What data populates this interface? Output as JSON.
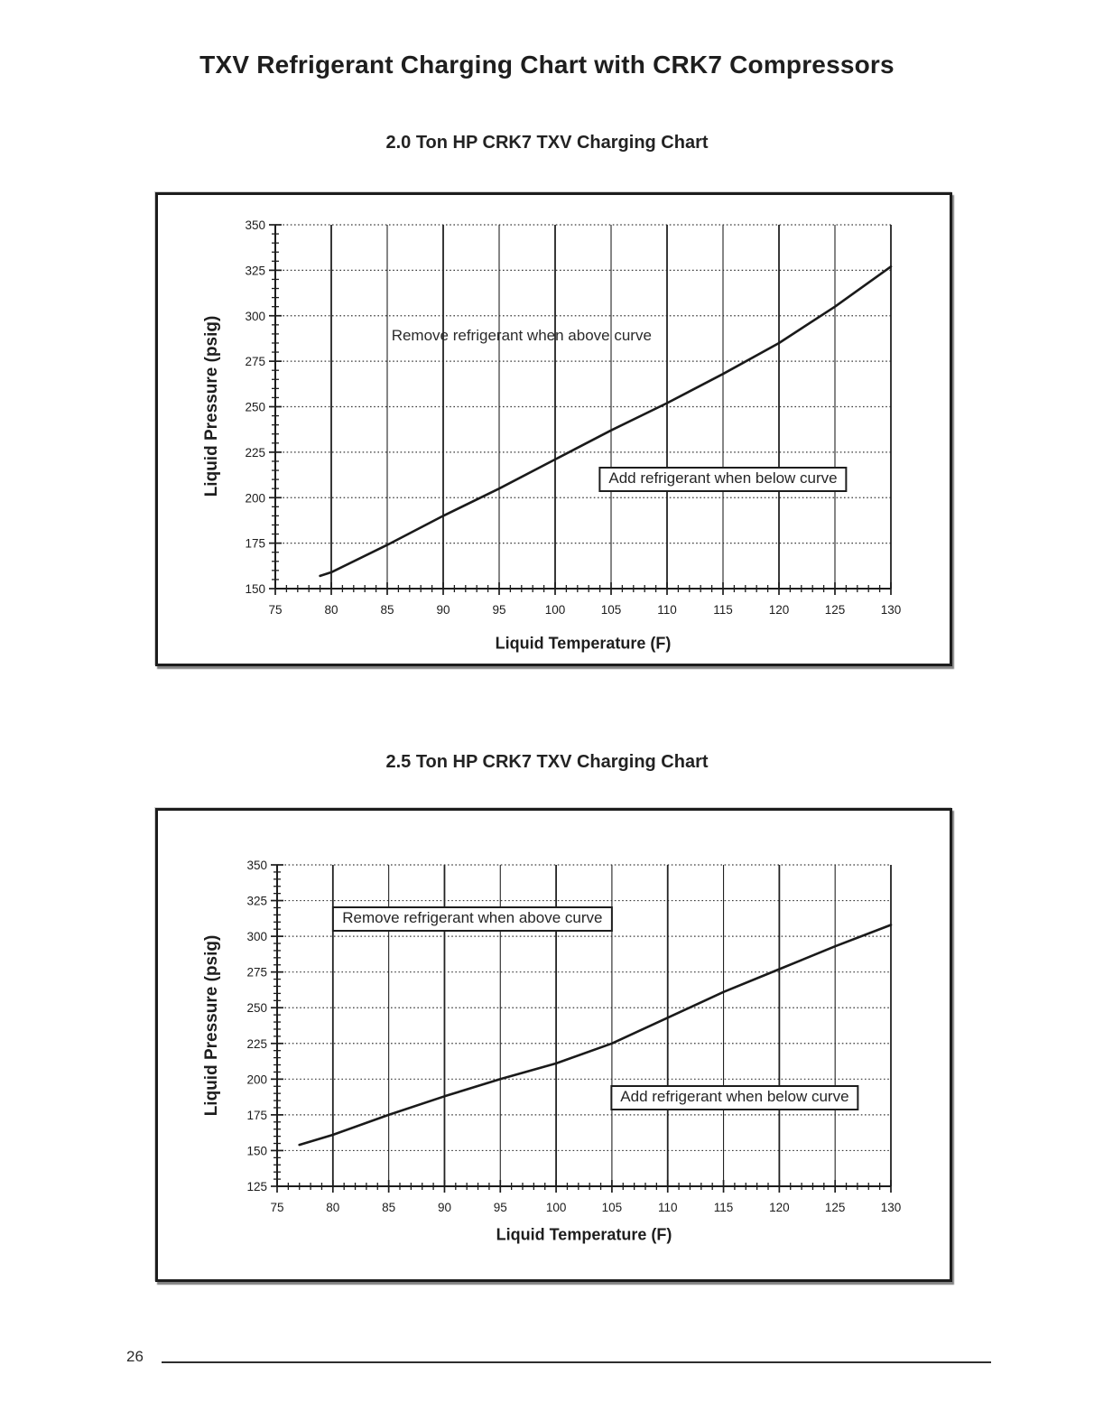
{
  "page": {
    "title": "TXV Refrigerant Charging Chart with CRK7 Compressors",
    "page_number": "26"
  },
  "chart_data": [
    {
      "type": "line",
      "title": "2.0 Ton HP CRK7 TXV Charging Chart",
      "xlabel": "Liquid Temperature (F)",
      "ylabel": "Liquid Pressure (psig)",
      "xlim": [
        75,
        130
      ],
      "ylim": [
        150,
        350
      ],
      "x_ticks": [
        75,
        80,
        85,
        90,
        95,
        100,
        105,
        110,
        115,
        120,
        125,
        130
      ],
      "y_ticks": [
        150,
        175,
        200,
        225,
        250,
        275,
        300,
        325,
        350
      ],
      "x_minor_step": 1,
      "y_minor_step": 5,
      "grid": "on",
      "legend": "none",
      "series": [
        {
          "name": "charging curve",
          "points": [
            [
              79,
              157
            ],
            [
              80,
              159
            ],
            [
              85,
              174
            ],
            [
              90,
              190
            ],
            [
              95,
              205
            ],
            [
              100,
              221
            ],
            [
              105,
              237
            ],
            [
              110,
              252
            ],
            [
              115,
              268
            ],
            [
              120,
              285
            ],
            [
              125,
              305
            ],
            [
              130,
              327
            ]
          ]
        }
      ],
      "annotations": [
        {
          "text": "Remove refrigerant when above curve",
          "x": 97,
          "y": 289,
          "boxed": false
        },
        {
          "text": "Add refrigerant when below curve",
          "x": 115,
          "y": 210,
          "boxed": true
        }
      ]
    },
    {
      "type": "line",
      "title": "2.5 Ton HP CRK7 TXV Charging Chart",
      "xlabel": "Liquid Temperature (F)",
      "ylabel": "Liquid Pressure (psig)",
      "xlim": [
        75,
        130
      ],
      "ylim": [
        125,
        350
      ],
      "x_ticks": [
        75,
        80,
        85,
        90,
        95,
        100,
        105,
        110,
        115,
        120,
        125,
        130
      ],
      "y_ticks": [
        125,
        150,
        175,
        200,
        225,
        250,
        275,
        300,
        325,
        350
      ],
      "x_minor_step": 1,
      "y_minor_step": 5,
      "grid": "on",
      "legend": "none",
      "series": [
        {
          "name": "charging curve",
          "points": [
            [
              77,
              154
            ],
            [
              80,
              161
            ],
            [
              85,
              175
            ],
            [
              90,
              188
            ],
            [
              95,
              200
            ],
            [
              100,
              211
            ],
            [
              105,
              225
            ],
            [
              110,
              243
            ],
            [
              115,
              261
            ],
            [
              120,
              277
            ],
            [
              125,
              293
            ],
            [
              130,
              308
            ]
          ]
        }
      ],
      "annotations": [
        {
          "text": "Remove refrigerant when above curve",
          "x": 92.5,
          "y": 312,
          "boxed": true
        },
        {
          "text": "Add refrigerant when below curve",
          "x": 116,
          "y": 187,
          "boxed": true
        }
      ]
    }
  ]
}
